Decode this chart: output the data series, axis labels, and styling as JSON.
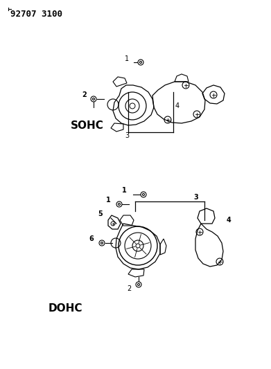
{
  "title": "92707 3100",
  "background_color": "#ffffff",
  "line_color": "#000000",
  "text_color": "#000000",
  "sohc_label": "SOHC",
  "dohc_label": "DOHC",
  "figsize": [
    3.91,
    5.33
  ],
  "dpi": 100
}
